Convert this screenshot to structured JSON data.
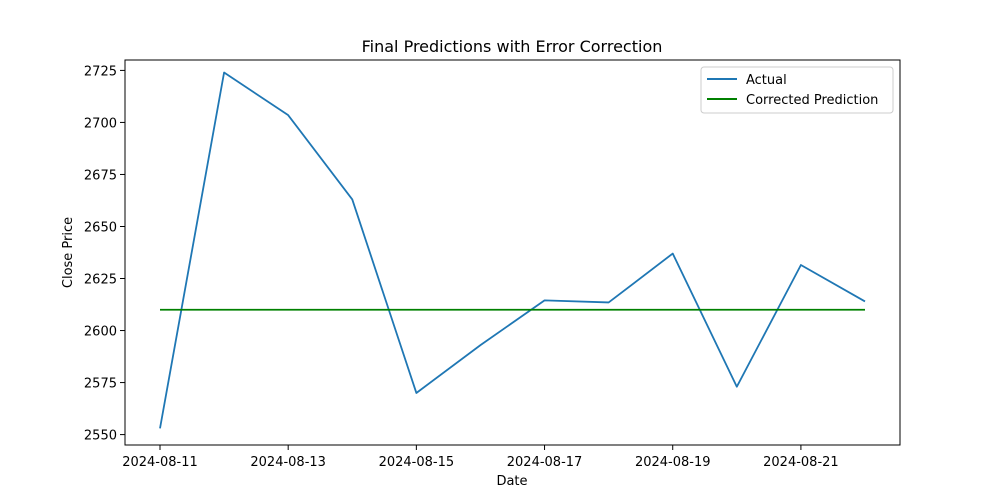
{
  "chart_data": {
    "type": "line",
    "title": "Final Predictions with Error Correction",
    "xlabel": "Date",
    "ylabel": "Close Price",
    "x": [
      "2024-08-11",
      "2024-08-12",
      "2024-08-13",
      "2024-08-14",
      "2024-08-15",
      "2024-08-16",
      "2024-08-17",
      "2024-08-18",
      "2024-08-19",
      "2024-08-20",
      "2024-08-21",
      "2024-08-22"
    ],
    "x_ticks": [
      "2024-08-11",
      "2024-08-13",
      "2024-08-15",
      "2024-08-17",
      "2024-08-19",
      "2024-08-21"
    ],
    "y_ticks": [
      2550,
      2575,
      2600,
      2625,
      2650,
      2675,
      2700,
      2725
    ],
    "ylim": [
      2545,
      2730
    ],
    "grid": false,
    "legend_position": "upper right",
    "series": [
      {
        "name": "Actual",
        "color": "#1f77b4",
        "values": [
          2553,
          2724,
          2703.5,
          2663,
          2570,
          2593,
          2614.5,
          2613.5,
          2637,
          2573,
          2631.5,
          2614
        ]
      },
      {
        "name": "Corrected Prediction",
        "color": "#008000",
        "values": [
          2610,
          2610,
          2610,
          2610,
          2610,
          2610,
          2610,
          2610,
          2610,
          2610,
          2610,
          2610
        ]
      }
    ]
  }
}
